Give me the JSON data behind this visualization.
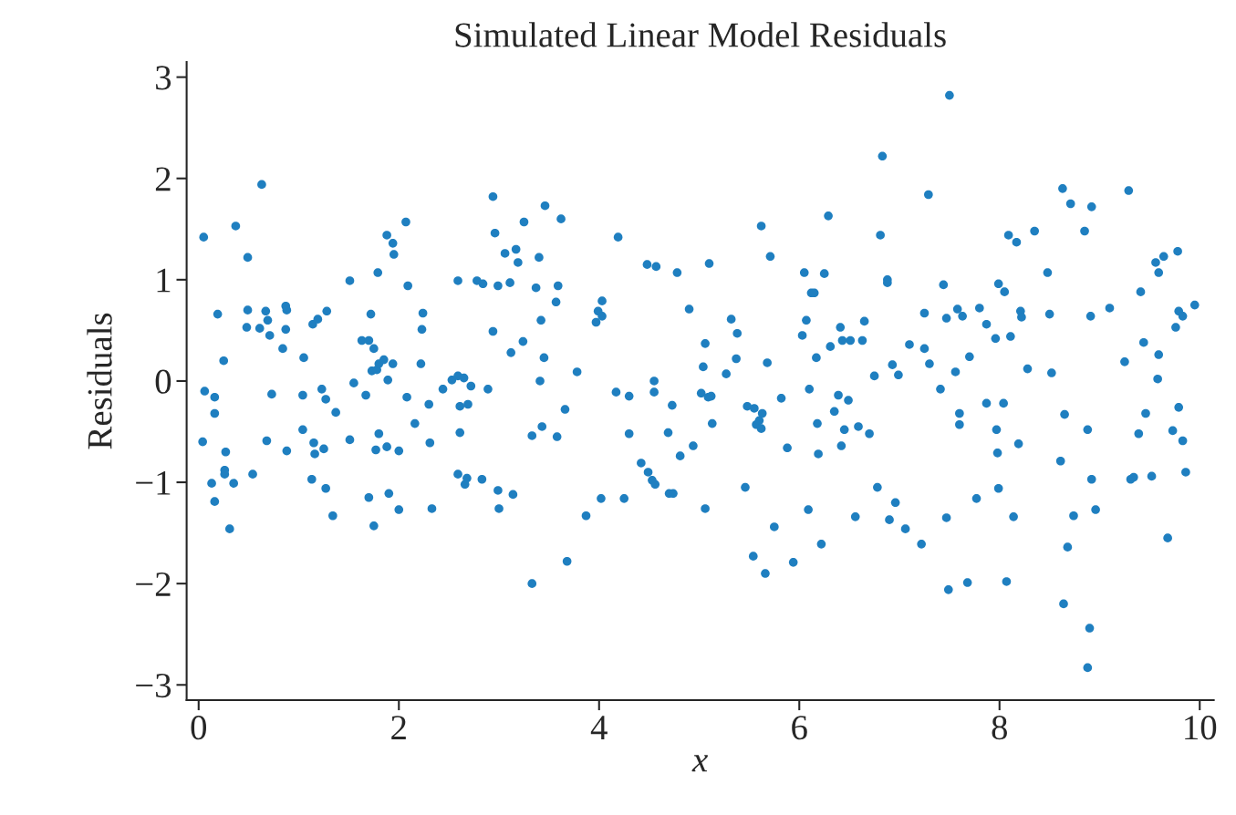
{
  "chart_data": {
    "type": "scatter",
    "title": "Simulated Linear Model Residuals",
    "xlabel": "x",
    "ylabel": "Residuals",
    "xlim": [
      -0.12,
      10.14
    ],
    "ylim": [
      -3.15,
      3.15
    ],
    "xticks": [
      0,
      2,
      4,
      6,
      8,
      10
    ],
    "yticks": [
      -3,
      -2,
      -1,
      0,
      1,
      2,
      3
    ],
    "grid": false,
    "marker": "circle",
    "series": [
      {
        "color": "#1f7fc0",
        "x": [
          0.05,
          0.06,
          0.04,
          0.13,
          0.16,
          0.16,
          0.16,
          0.19,
          0.25,
          0.27,
          0.26,
          0.26,
          0.31,
          0.35,
          0.37,
          0.49,
          0.49,
          0.48,
          0.54,
          0.63,
          0.61,
          0.67,
          0.69,
          0.68,
          0.73,
          0.71,
          0.84,
          0.87,
          0.88,
          0.87,
          0.88,
          1.05,
          1.04,
          1.04,
          1.15,
          1.16,
          1.13,
          1.14,
          1.19,
          1.23,
          1.25,
          1.28,
          1.27,
          1.27,
          1.34,
          1.37,
          1.51,
          1.51,
          1.55,
          1.63,
          1.67,
          1.7,
          1.7,
          1.73,
          1.72,
          1.75,
          1.75,
          1.77,
          1.79,
          1.78,
          1.8,
          1.8,
          1.85,
          1.88,
          1.89,
          1.88,
          1.9,
          1.94,
          1.95,
          1.94,
          2.0,
          2.0,
          2.07,
          2.09,
          2.08,
          2.16,
          2.22,
          2.23,
          2.24,
          2.3,
          2.31,
          2.33,
          2.44,
          2.53,
          2.59,
          2.59,
          2.61,
          2.59,
          2.61,
          2.65,
          2.66,
          2.68,
          2.69,
          2.72,
          2.78,
          2.84,
          2.83,
          2.89,
          2.94,
          2.94,
          2.96,
          2.99,
          2.99,
          3.0,
          3.06,
          3.11,
          3.12,
          3.14,
          3.17,
          3.19,
          3.24,
          3.25,
          3.33,
          3.33,
          3.37,
          3.4,
          3.41,
          3.42,
          3.43,
          3.45,
          3.46,
          3.57,
          3.59,
          3.58,
          3.62,
          3.66,
          3.68,
          3.78,
          3.87,
          3.97,
          3.99,
          4.03,
          4.03,
          4.02,
          4.17,
          4.19,
          4.25,
          4.3,
          4.3,
          4.42,
          4.48,
          4.49,
          4.53,
          4.57,
          4.55,
          4.55,
          4.56,
          4.69,
          4.7,
          4.74,
          4.73,
          4.78,
          4.81,
          4.9,
          4.94,
          5.02,
          5.04,
          5.06,
          5.06,
          5.09,
          5.1,
          5.12,
          5.13,
          5.27,
          5.32,
          5.38,
          5.37,
          5.46,
          5.48,
          5.54,
          5.55,
          5.57,
          5.6,
          5.62,
          5.62,
          5.63,
          5.66,
          5.68,
          5.71,
          5.75,
          5.82,
          5.88,
          5.94,
          6.03,
          6.05,
          6.07,
          6.09,
          6.1,
          6.12,
          6.15,
          6.17,
          6.18,
          6.19,
          6.22,
          6.25,
          6.29,
          6.31,
          6.35,
          6.39,
          6.41,
          6.42,
          6.43,
          6.45,
          6.49,
          6.51,
          6.56,
          6.59,
          6.63,
          6.65,
          6.7,
          6.75,
          6.78,
          6.81,
          6.83,
          6.88,
          6.88,
          6.9,
          6.93,
          6.96,
          6.99,
          7.06,
          7.1,
          7.22,
          7.25,
          7.25,
          7.29,
          7.3,
          7.41,
          7.44,
          7.47,
          7.47,
          7.49,
          7.5,
          7.56,
          7.58,
          7.6,
          7.6,
          7.63,
          7.68,
          7.7,
          7.77,
          7.8,
          7.87,
          7.87,
          7.99,
          7.96,
          7.97,
          7.98,
          7.99,
          8.04,
          8.05,
          8.07,
          8.09,
          8.11,
          8.14,
          8.17,
          8.19,
          8.21,
          8.22,
          8.28,
          8.35,
          8.48,
          8.5,
          8.52,
          8.61,
          8.63,
          8.65,
          8.64,
          8.68,
          8.71,
          8.74,
          8.85,
          8.88,
          8.88,
          8.9,
          8.91,
          8.92,
          8.92,
          8.96,
          9.1,
          9.25,
          9.29,
          9.31,
          9.34,
          9.39,
          9.41,
          9.44,
          9.46,
          9.52,
          9.56,
          9.59,
          9.59,
          9.58,
          9.64,
          9.68,
          9.73,
          9.76,
          9.78,
          9.79,
          9.79,
          9.83,
          9.83,
          9.86,
          9.95
        ],
        "values": [
          1.42,
          -0.1,
          -0.6,
          -1.01,
          -0.16,
          -0.32,
          -1.19,
          0.66,
          0.2,
          -0.7,
          -0.88,
          -0.92,
          -1.46,
          -1.01,
          1.53,
          1.22,
          0.7,
          0.53,
          -0.92,
          1.94,
          0.52,
          0.69,
          0.6,
          -0.59,
          -0.13,
          0.45,
          0.32,
          0.74,
          0.7,
          0.51,
          -0.69,
          0.23,
          -0.14,
          -0.48,
          -0.61,
          -0.72,
          -0.97,
          0.56,
          0.61,
          -0.08,
          -0.67,
          0.69,
          -1.06,
          -0.18,
          -1.33,
          -0.31,
          0.99,
          -0.58,
          -0.02,
          0.4,
          -0.14,
          0.4,
          -1.15,
          0.1,
          0.66,
          0.32,
          -1.43,
          -0.68,
          1.07,
          0.11,
          -0.52,
          0.17,
          0.21,
          1.44,
          0.01,
          -0.65,
          -1.11,
          1.36,
          1.25,
          0.17,
          -0.69,
          -1.27,
          1.57,
          0.94,
          -0.16,
          -0.42,
          0.17,
          0.51,
          0.67,
          -0.23,
          -0.61,
          -1.26,
          -0.08,
          0.01,
          0.99,
          0.05,
          -0.25,
          -0.92,
          -0.51,
          0.03,
          -1.02,
          -0.96,
          -0.23,
          -0.05,
          0.99,
          0.96,
          -0.97,
          -0.08,
          1.82,
          0.49,
          1.46,
          0.94,
          -1.08,
          -1.26,
          1.26,
          0.97,
          0.28,
          -1.12,
          1.3,
          1.17,
          0.39,
          1.57,
          -0.54,
          -2.0,
          0.92,
          1.22,
          0.0,
          0.6,
          -0.45,
          0.23,
          1.73,
          0.78,
          0.94,
          -0.55,
          1.6,
          -0.28,
          -1.78,
          0.09,
          -1.33,
          0.58,
          0.69,
          0.79,
          0.64,
          -1.16,
          -0.11,
          1.42,
          -1.16,
          -0.15,
          -0.52,
          -0.81,
          1.15,
          -0.9,
          -0.98,
          1.13,
          0.0,
          -0.11,
          -1.02,
          -0.51,
          -1.11,
          -1.11,
          -0.24,
          1.07,
          -0.74,
          0.71,
          -0.64,
          -0.12,
          0.14,
          -1.26,
          0.37,
          -0.16,
          1.16,
          -0.15,
          -0.42,
          0.07,
          0.61,
          0.47,
          0.22,
          -1.05,
          -0.25,
          -1.73,
          -0.27,
          -0.43,
          -0.39,
          1.53,
          -0.47,
          -0.32,
          -1.9,
          0.18,
          1.23,
          -1.44,
          -0.17,
          -0.66,
          -1.79,
          0.45,
          1.07,
          0.6,
          -1.27,
          -0.08,
          0.87,
          0.87,
          0.23,
          -0.42,
          -0.72,
          -1.61,
          1.06,
          1.63,
          0.34,
          -0.3,
          -0.14,
          0.53,
          -0.64,
          0.4,
          -0.48,
          -0.19,
          0.4,
          -1.34,
          -0.45,
          0.4,
          0.59,
          -0.52,
          0.05,
          -1.05,
          1.44,
          2.22,
          1.0,
          0.97,
          -1.37,
          0.16,
          -1.2,
          0.06,
          -1.46,
          0.36,
          -1.61,
          0.32,
          0.67,
          1.84,
          0.17,
          -0.08,
          0.95,
          -1.35,
          0.62,
          -2.06,
          2.82,
          0.09,
          0.71,
          -0.32,
          -0.43,
          0.64,
          -1.99,
          0.24,
          -1.16,
          0.72,
          0.56,
          -0.22,
          0.96,
          0.42,
          -0.48,
          -0.71,
          -1.06,
          -0.22,
          0.88,
          -1.98,
          1.44,
          0.44,
          -1.34,
          1.37,
          -0.62,
          0.69,
          0.63,
          0.12,
          1.48,
          1.07,
          0.66,
          0.08,
          -0.79,
          1.9,
          -0.33,
          -2.2,
          -1.64,
          1.75,
          -1.33,
          1.48,
          -0.48,
          -2.83,
          -2.44,
          0.64,
          1.72,
          -0.97,
          -1.27,
          0.72,
          0.19,
          1.88,
          -0.97,
          -0.95,
          -0.52,
          0.88,
          0.38,
          -0.32,
          -0.94,
          1.17,
          1.07,
          0.26,
          0.02,
          1.23,
          -1.55,
          -0.49,
          0.53,
          1.28,
          0.69,
          -0.26,
          0.64,
          -0.59,
          -0.9,
          0.75
        ]
      }
    ]
  }
}
